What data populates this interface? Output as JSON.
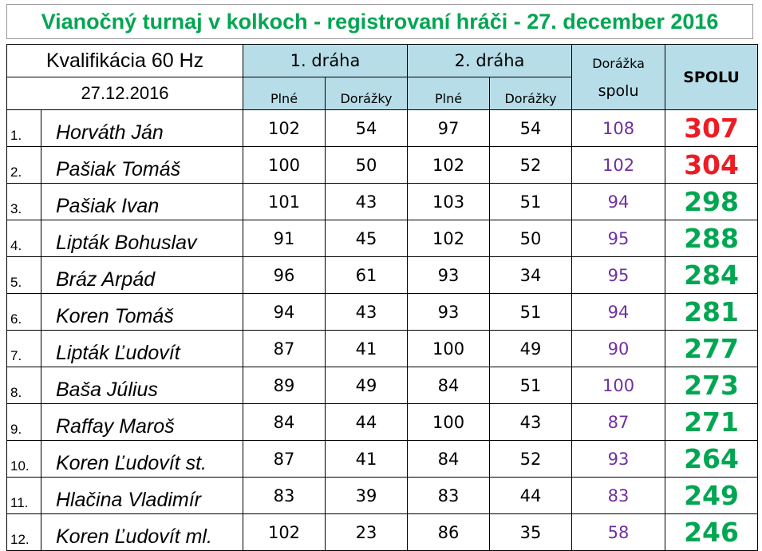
{
  "title": "Vianočný turnaj v kolkoch - registrovaní hráči - 27. december 2016",
  "header": {
    "qualification": "Kvalifikácia 60 Hz",
    "date": "27.12.2016",
    "lane1": "1. dráha",
    "lane2": "2. dráha",
    "col_full": "Plné",
    "col_clear": "Dorážky",
    "cleanup_total_line1": "Dorážka",
    "cleanup_total_line2": "spolu",
    "total": "SPOLU"
  },
  "colors": {
    "title_green": "#00a651",
    "header_bg": "#b7dde8",
    "cleanup_purple": "#7030a0",
    "top_red": "#ed1c24",
    "total_green": "#00a651"
  },
  "rows": [
    {
      "rank": "1.",
      "name": "Horváth Ján",
      "l1_full": "102",
      "l1_clear": "54",
      "l2_full": "97",
      "l2_clear": "54",
      "clear_total": "108",
      "total": "307",
      "highlight": "red"
    },
    {
      "rank": "2.",
      "name": "Pašiak Tomáš",
      "l1_full": "100",
      "l1_clear": "50",
      "l2_full": "102",
      "l2_clear": "52",
      "clear_total": "102",
      "total": "304",
      "highlight": "red"
    },
    {
      "rank": "3.",
      "name": "Pašiak Ivan",
      "l1_full": "101",
      "l1_clear": "43",
      "l2_full": "103",
      "l2_clear": "51",
      "clear_total": "94",
      "total": "298",
      "highlight": "green"
    },
    {
      "rank": "4.",
      "name": "Lipták Bohuslav",
      "l1_full": "91",
      "l1_clear": "45",
      "l2_full": "102",
      "l2_clear": "50",
      "clear_total": "95",
      "total": "288",
      "highlight": "green"
    },
    {
      "rank": "5.",
      "name": "Bráz Arpád",
      "l1_full": "96",
      "l1_clear": "61",
      "l2_full": "93",
      "l2_clear": "34",
      "clear_total": "95",
      "total": "284",
      "highlight": "green"
    },
    {
      "rank": "6.",
      "name": "Koren Tomáš",
      "l1_full": "94",
      "l1_clear": "43",
      "l2_full": "93",
      "l2_clear": "51",
      "clear_total": "94",
      "total": "281",
      "highlight": "green"
    },
    {
      "rank": "7.",
      "name": "Lipták Ľudovít",
      "l1_full": "87",
      "l1_clear": "41",
      "l2_full": "100",
      "l2_clear": "49",
      "clear_total": "90",
      "total": "277",
      "highlight": "green"
    },
    {
      "rank": "8.",
      "name": "Baša Július",
      "l1_full": "89",
      "l1_clear": "49",
      "l2_full": "84",
      "l2_clear": "51",
      "clear_total": "100",
      "total": "273",
      "highlight": "green"
    },
    {
      "rank": "9.",
      "name": "Raffay Maroš",
      "l1_full": "84",
      "l1_clear": "44",
      "l2_full": "100",
      "l2_clear": "43",
      "clear_total": "87",
      "total": "271",
      "highlight": "green"
    },
    {
      "rank": "10.",
      "name": "Koren Ľudovít st.",
      "l1_full": "87",
      "l1_clear": "41",
      "l2_full": "84",
      "l2_clear": "52",
      "clear_total": "93",
      "total": "264",
      "highlight": "green"
    },
    {
      "rank": "11.",
      "name": "Hlačina Vladimír",
      "l1_full": "83",
      "l1_clear": "39",
      "l2_full": "83",
      "l2_clear": "44",
      "clear_total": "83",
      "total": "249",
      "highlight": "green"
    },
    {
      "rank": "12.",
      "name": "Koren Ľudovít ml.",
      "l1_full": "102",
      "l1_clear": "23",
      "l2_full": "86",
      "l2_clear": "35",
      "clear_total": "58",
      "total": "246",
      "highlight": "green"
    }
  ]
}
